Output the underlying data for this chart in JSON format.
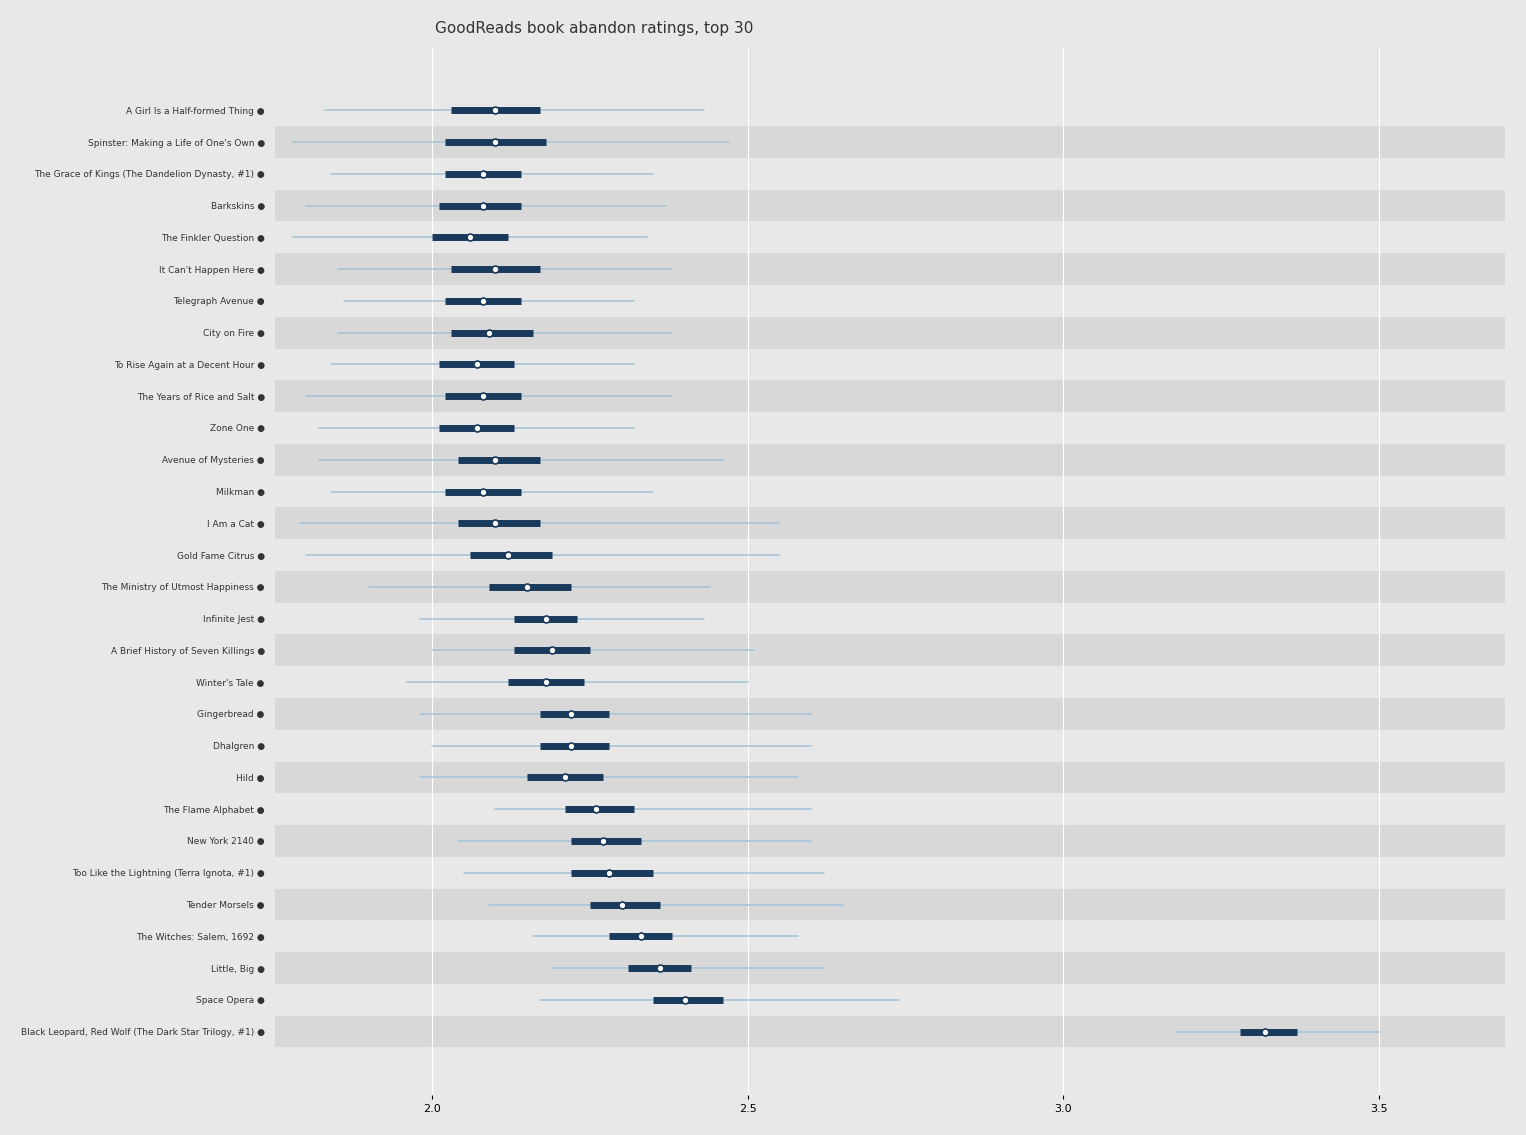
{
  "title": "GoodReads book abandon ratings, top 30",
  "books": [
    "A Girl Is a Half-formed Thing",
    "Spinster: Making a Life of One's Own",
    "The Grace of Kings (The Dandelion Dynasty, #1)",
    "Barkskins",
    "The Finkler Question",
    "It Can't Happen Here",
    "Telegraph Avenue",
    "City on Fire",
    "To Rise Again at a Decent Hour",
    "The Years of Rice and Salt",
    "Zone One",
    "Avenue of Mysteries",
    "Milkman",
    "I Am a Cat",
    "Gold Fame Citrus",
    "The Ministry of Utmost Happiness",
    "Infinite Jest",
    "A Brief History of Seven Killings",
    "Winter's Tale",
    "Gingerbread",
    "Dhalgren",
    "Hild",
    "The Flame Alphabet",
    "New York 2140",
    "Too Like the Lightning (Terra Ignota, #1)",
    "Tender Morsels",
    "The Witches: Salem, 1692",
    "Little, Big",
    "Space Opera",
    "Black Leopard, Red Wolf (The Dark Star Trilogy, #1)"
  ],
  "median": [
    2.1,
    2.1,
    2.08,
    2.08,
    2.06,
    2.1,
    2.08,
    2.09,
    2.07,
    2.08,
    2.07,
    2.1,
    2.08,
    2.1,
    2.12,
    2.15,
    2.18,
    2.19,
    2.18,
    2.22,
    2.22,
    2.21,
    2.26,
    2.27,
    2.28,
    2.3,
    2.33,
    2.36,
    2.4,
    3.32
  ],
  "ci50_lo": [
    2.03,
    2.02,
    2.02,
    2.01,
    2.0,
    2.03,
    2.02,
    2.03,
    2.01,
    2.02,
    2.01,
    2.04,
    2.02,
    2.04,
    2.06,
    2.09,
    2.13,
    2.13,
    2.12,
    2.17,
    2.17,
    2.15,
    2.21,
    2.22,
    2.22,
    2.25,
    2.28,
    2.31,
    2.35,
    3.28
  ],
  "ci50_hi": [
    2.17,
    2.18,
    2.14,
    2.14,
    2.12,
    2.17,
    2.14,
    2.16,
    2.13,
    2.14,
    2.13,
    2.17,
    2.14,
    2.17,
    2.19,
    2.22,
    2.23,
    2.25,
    2.24,
    2.28,
    2.28,
    2.27,
    2.32,
    2.33,
    2.35,
    2.36,
    2.38,
    2.41,
    2.46,
    3.37
  ],
  "ci95_lo": [
    1.83,
    1.78,
    1.84,
    1.8,
    1.78,
    1.85,
    1.86,
    1.85,
    1.84,
    1.8,
    1.82,
    1.82,
    1.84,
    1.79,
    1.8,
    1.9,
    1.98,
    2.0,
    1.96,
    1.98,
    2.0,
    1.98,
    2.1,
    2.04,
    2.05,
    2.09,
    2.16,
    2.19,
    2.17,
    3.18
  ],
  "ci95_hi": [
    2.43,
    2.47,
    2.35,
    2.37,
    2.34,
    2.38,
    2.32,
    2.38,
    2.32,
    2.38,
    2.32,
    2.46,
    2.35,
    2.55,
    2.55,
    2.44,
    2.43,
    2.51,
    2.5,
    2.6,
    2.6,
    2.58,
    2.6,
    2.6,
    2.62,
    2.65,
    2.58,
    2.62,
    2.74,
    3.5
  ],
  "xlim": [
    1.75,
    3.7
  ],
  "xticks": [
    2.0,
    2.5,
    3.0,
    3.5
  ],
  "bg_color": "#e8e8e8",
  "line_color_outer": "#a8c4d8",
  "line_color_inner": "#1a3a5c",
  "dot_color": "#ffffff",
  "dot_edge_color": "#1a3a5c",
  "alt_row_color": "#d8d8d8"
}
